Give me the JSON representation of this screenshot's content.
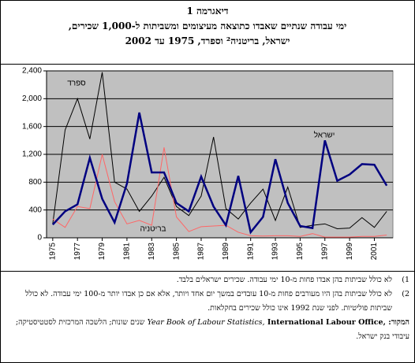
{
  "chart_data": {
    "type": "line",
    "title": "דיאגרמה 1",
    "subtitle": [
      "ימי עבודה שנתיים שאבדו כתוצאה מעיצומים ומשביתות ל-1,000 שכירים,",
      "ישראל, בריטניה² וספרד, 1975 עד 2002"
    ],
    "x": [
      1975,
      1976,
      1977,
      1978,
      1979,
      1980,
      1981,
      1982,
      1983,
      1984,
      1985,
      1986,
      1987,
      1988,
      1989,
      1990,
      1991,
      1992,
      1993,
      1994,
      1995,
      1996,
      1997,
      1998,
      1999,
      2000,
      2001,
      2002
    ],
    "xlim": [
      1974.5,
      2002.5
    ],
    "xticks": [
      1975,
      1977,
      1979,
      1981,
      1983,
      1985,
      1987,
      1989,
      1991,
      1993,
      1995,
      1997,
      1999,
      2001
    ],
    "ylim": [
      0,
      2400
    ],
    "yticks": [
      0,
      400,
      800,
      {
        "value": 1200,
        "label": "1,200"
      },
      {
        "value": 1600,
        "label": "1,600"
      },
      {
        "value": 2000,
        "label": "2,000"
      },
      {
        "value": 2400,
        "label": "2,400"
      }
    ],
    "grid": true,
    "series": [
      {
        "name": "ספרד",
        "color": "#000000",
        "width": 1,
        "values": [
          200,
          1550,
          2000,
          1420,
          2380,
          800,
          700,
          380,
          600,
          870,
          450,
          320,
          600,
          1450,
          420,
          270,
          500,
          700,
          250,
          730,
          150,
          180,
          200,
          130,
          140,
          290,
          150,
          380
        ]
      },
      {
        "name": "בריטניה",
        "color": "#ff6666",
        "width": 1,
        "values": [
          270,
          150,
          450,
          420,
          1200,
          520,
          200,
          250,
          180,
          1300,
          300,
          90,
          160,
          170,
          180,
          80,
          30,
          25,
          30,
          30,
          20,
          60,
          10,
          10,
          10,
          20,
          20,
          40
        ]
      },
      {
        "name": "ישראל",
        "color": "#000080",
        "width": 2.5,
        "values": [
          190,
          380,
          480,
          1150,
          560,
          220,
          780,
          1800,
          940,
          940,
          500,
          380,
          880,
          450,
          180,
          890,
          80,
          300,
          1130,
          500,
          170,
          140,
          1400,
          820,
          910,
          1060,
          1050,
          750
        ]
      }
    ]
  },
  "notes": [
    {
      "marker": "1)",
      "text": "לא כולל שביתות בהן אבדו פחות מ-10 ימי עבודה. שכירים ישראלים בלבד."
    },
    {
      "marker": "2)",
      "text": "לא כולל שביתות בהן היו מעורבים פחות מ-10 עובדים במשך יום אחד ויותר, אלא אם כן אבדו יותר מ-100 ימי עבודה. לא כולל שביתות פוליטיות. לפני שנת 1992 אינו כולל שכירים בחקלאות."
    }
  ],
  "source": {
    "label": "המקור:",
    "org": "International Labour Office,",
    "pub": "Year Book of Labour Statistics,",
    "rest": "שנים שונות; הלשכה המרכזית לסטטיסטיקה; עיבודי בנק ישראל."
  }
}
